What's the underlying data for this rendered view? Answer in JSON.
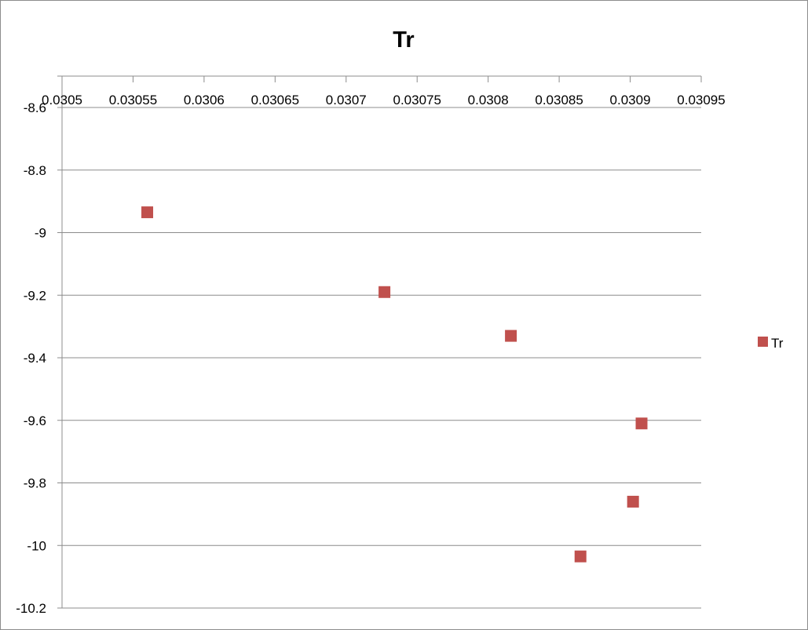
{
  "chart_data": {
    "type": "scatter",
    "title": "Tr",
    "xlabel": "",
    "ylabel": "",
    "xlim": [
      0.0305,
      0.03095
    ],
    "ylim": [
      -10.2,
      -8.6
    ],
    "x_ticks": [
      {
        "value": 0.0305,
        "label": "0.0305"
      },
      {
        "value": 0.03055,
        "label": "0.03055"
      },
      {
        "value": 0.0306,
        "label": "0.0306"
      },
      {
        "value": 0.03065,
        "label": "0.03065"
      },
      {
        "value": 0.0307,
        "label": "0.0307"
      },
      {
        "value": 0.03075,
        "label": "0.03075"
      },
      {
        "value": 0.0308,
        "label": "0.0308"
      },
      {
        "value": 0.03085,
        "label": "0.03085"
      },
      {
        "value": 0.0309,
        "label": "0.0309"
      },
      {
        "value": 0.03095,
        "label": "0.03095"
      }
    ],
    "y_ticks": [
      {
        "value": -8.6,
        "label": "-8.6"
      },
      {
        "value": -8.8,
        "label": "-8.8"
      },
      {
        "value": -9.0,
        "label": "-9"
      },
      {
        "value": -9.2,
        "label": "-9.2"
      },
      {
        "value": -9.4,
        "label": "-9.4"
      },
      {
        "value": -9.6,
        "label": "-9.6"
      },
      {
        "value": -9.8,
        "label": "-9.8"
      },
      {
        "value": -10.0,
        "label": "-10"
      },
      {
        "value": -10.2,
        "label": "-10.2"
      }
    ],
    "x_axis_position": "top",
    "grid": {
      "horizontal": true,
      "vertical": false
    },
    "legend": {
      "position": "right"
    },
    "series": [
      {
        "name": "Tr",
        "color": "#c0504d",
        "marker": "square",
        "x": [
          0.03056,
          0.030727,
          0.030816,
          0.030865,
          0.030902,
          0.030908
        ],
        "y": [
          -8.935,
          -9.19,
          -9.33,
          -10.035,
          -9.86,
          -9.61
        ]
      }
    ]
  }
}
